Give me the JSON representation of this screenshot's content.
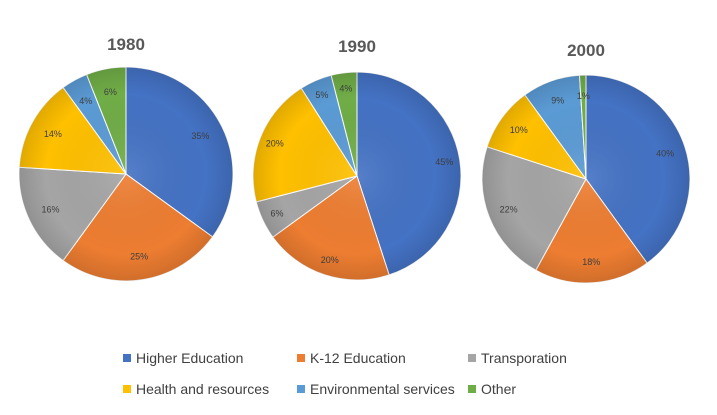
{
  "chart_data": [
    {
      "type": "pie",
      "title": "1980",
      "categories": [
        "Higher Education",
        "K-12 Education",
        "Transporation",
        "Health and resources",
        "Environmental services",
        "Other"
      ],
      "values": [
        35,
        25,
        16,
        14,
        4,
        6
      ],
      "labels": [
        "35%",
        "25%",
        "16%",
        "14%",
        "4%",
        "6%"
      ]
    },
    {
      "type": "pie",
      "title": "1990",
      "categories": [
        "Higher Education",
        "K-12 Education",
        "Transporation",
        "Health and resources",
        "Environmental services",
        "Other"
      ],
      "values": [
        45,
        20,
        6,
        20,
        5,
        4
      ],
      "labels": [
        "45%",
        "20%",
        "6%",
        "20%",
        "5%",
        "4%"
      ]
    },
    {
      "type": "pie",
      "title": "2000",
      "categories": [
        "Higher Education",
        "K-12 Education",
        "Transporation",
        "Health and resources",
        "Environmental services",
        "Other"
      ],
      "values": [
        40,
        18,
        22,
        10,
        9,
        1
      ],
      "labels": [
        "40%",
        "18%",
        "22%",
        "10%",
        "9%",
        "1%"
      ]
    }
  ],
  "legend": {
    "items": [
      {
        "label": "Higher Education",
        "color": "#4472C4"
      },
      {
        "label": "K-12 Education",
        "color": "#ED7D31"
      },
      {
        "label": "Transporation",
        "color": "#A5A5A5"
      },
      {
        "label": "Health and resources",
        "color": "#FFC000"
      },
      {
        "label": "Environmental services",
        "color": "#5B9BD5"
      },
      {
        "label": "Other",
        "color": "#70AD47"
      }
    ]
  }
}
